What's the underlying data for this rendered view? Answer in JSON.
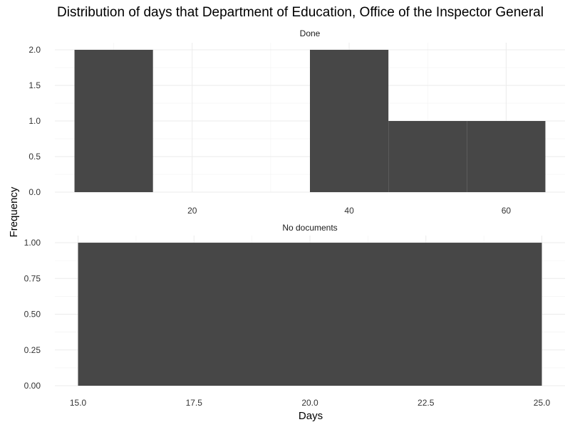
{
  "chart_data": {
    "type": "bar",
    "title": "Distribution of days that Department of Education, Office of the Inspector General",
    "xlabel": "Days",
    "ylabel": "Frequency",
    "grid": true,
    "facets": [
      {
        "strip": "Done",
        "bins": [
          {
            "x0": 5,
            "x1": 15,
            "count": 2
          },
          {
            "x0": 15,
            "x1": 25,
            "count": 0
          },
          {
            "x0": 25,
            "x1": 35,
            "count": 0
          },
          {
            "x0": 35,
            "x1": 45,
            "count": 2
          },
          {
            "x0": 45,
            "x1": 55,
            "count": 1
          },
          {
            "x0": 55,
            "x1": 65,
            "count": 1
          }
        ],
        "xlim": [
          2.5,
          67.5
        ],
        "ylim": [
          0,
          2.1
        ],
        "xticks": [
          20,
          40,
          60
        ],
        "xtick_labels": [
          "20",
          "40",
          "60"
        ],
        "yticks": [
          0,
          0.5,
          1.0,
          1.5,
          2.0
        ],
        "ytick_labels": [
          "0.0",
          "0.5",
          "1.0",
          "1.5",
          "2.0"
        ]
      },
      {
        "strip": "No documents",
        "bins": [
          {
            "x0": 15,
            "x1": 25,
            "count": 1
          }
        ],
        "xlim": [
          14.5,
          25.5
        ],
        "ylim": [
          0,
          1.05
        ],
        "xticks": [
          15,
          17.5,
          20,
          22.5,
          25
        ],
        "xtick_labels": [
          "15.0",
          "17.5",
          "20.0",
          "22.5",
          "25.0"
        ],
        "yticks": [
          0,
          0.25,
          0.5,
          0.75,
          1.0
        ],
        "ytick_labels": [
          "0.00",
          "0.25",
          "0.50",
          "0.75",
          "1.00"
        ]
      }
    ],
    "colors": {
      "bar": "#474747",
      "grid": "#ebebeb"
    }
  }
}
